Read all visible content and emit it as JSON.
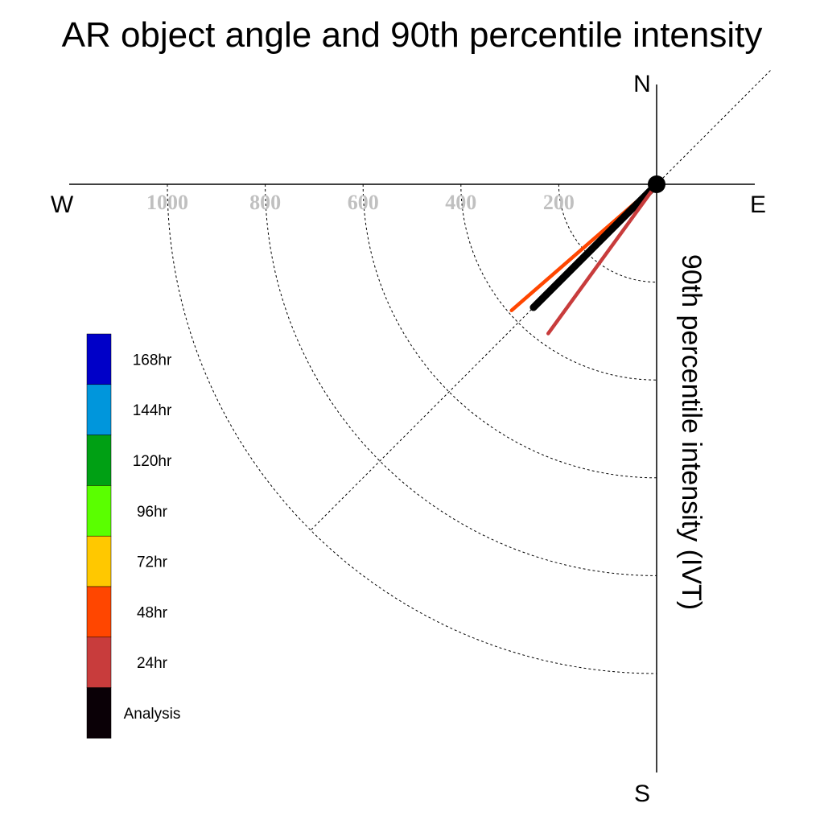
{
  "chart_data": {
    "type": "polar-vector",
    "title": "AR object angle and 90th percentile intensity",
    "ylabel": "90th percentile intensity (IVT)",
    "compass": {
      "north": "N",
      "south": "S",
      "east": "E",
      "west": "W"
    },
    "radial_ticks": [
      200,
      400,
      600,
      800,
      1000
    ],
    "radial_tick_labels": [
      "200",
      "400",
      "600",
      "800",
      "1000"
    ],
    "reference_angle_deg": 45,
    "grid": true,
    "legend_placement": "left",
    "legend": [
      {
        "label": "168hr",
        "color": "#0000c8"
      },
      {
        "label": "144hr",
        "color": "#0096dc"
      },
      {
        "label": "120hr",
        "color": "#00a014"
      },
      {
        "label": "96hr",
        "color": "#5aff00"
      },
      {
        "label": "72hr",
        "color": "#ffc800"
      },
      {
        "label": "48hr",
        "color": "#ff4600"
      },
      {
        "label": "24hr",
        "color": "#c83c3c"
      },
      {
        "label": "Analysis",
        "color": "#0a0006"
      }
    ],
    "series": [
      {
        "name": "48hr",
        "color": "#ff4600",
        "direction_deg": 229,
        "intensity": 393
      },
      {
        "name": "Analysis",
        "color": "#000000",
        "direction_deg": 225,
        "intensity": 356
      },
      {
        "name": "24hr",
        "color": "#c83c3c",
        "direction_deg": 216,
        "intensity": 377
      }
    ]
  }
}
